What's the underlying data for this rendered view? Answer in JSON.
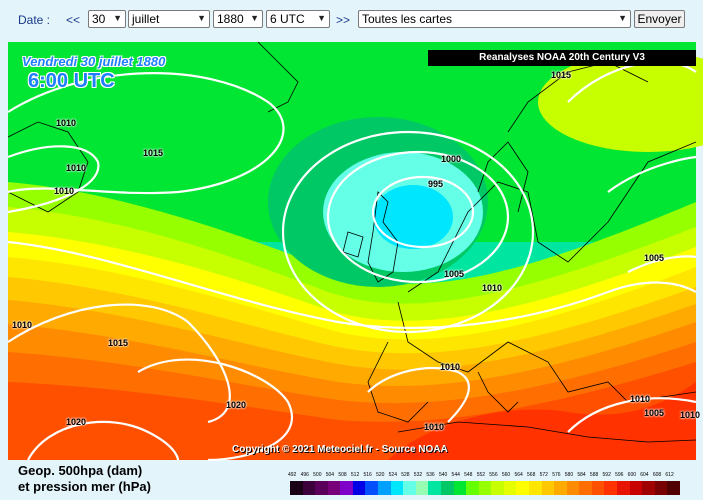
{
  "toolbar": {
    "date_label": "Date :",
    "prev_label": "<<",
    "next_label": ">>",
    "day": "30",
    "month": "juillet",
    "year": "1880",
    "hour": "6 UTC",
    "map_type": "Toutes les cartes",
    "submit_label": "Envoyer"
  },
  "map": {
    "date_text": "Vendredi 30 juillet 1880",
    "time_text": "6:00 UTC",
    "banner": "Reanalyses NOAA 20th Century V3",
    "copyright": "Copyright © 2021 Meteociel.fr - Source NOAA",
    "isobar_labels": [
      "1015",
      "1010",
      "1010",
      "1010",
      "1015",
      "1000",
      "995",
      "1005",
      "1010",
      "1005",
      "1010",
      "1015",
      "1010",
      "1020",
      "1020",
      "1010",
      "1010",
      "1005",
      "1010"
    ]
  },
  "legend": {
    "title_line1": "Geop. 500hpa (dam)",
    "title_line2": "et pression mer (hPa)",
    "ticks": [
      "492",
      "496",
      "500",
      "504",
      "508",
      "512",
      "516",
      "520",
      "524",
      "528",
      "532",
      "536",
      "540",
      "544",
      "548",
      "552",
      "556",
      "560",
      "564",
      "568",
      "572",
      "576",
      "580",
      "584",
      "588",
      "592",
      "596",
      "600",
      "604",
      "608",
      "612"
    ],
    "colors": [
      "#1a0016",
      "#3c003c",
      "#5a005a",
      "#780078",
      "#7f00c8",
      "#0000e6",
      "#0050ff",
      "#00a0ff",
      "#00e6ff",
      "#64ffe6",
      "#96ffb4",
      "#00e6a0",
      "#00c864",
      "#00e632",
      "#64ff00",
      "#96ff00",
      "#c8ff00",
      "#e6ff00",
      "#ffff00",
      "#ffe600",
      "#ffc800",
      "#ffaa00",
      "#ff8c00",
      "#ff6e00",
      "#ff5000",
      "#ff3200",
      "#e61400",
      "#c80000",
      "#a00000",
      "#780000",
      "#500000"
    ]
  }
}
